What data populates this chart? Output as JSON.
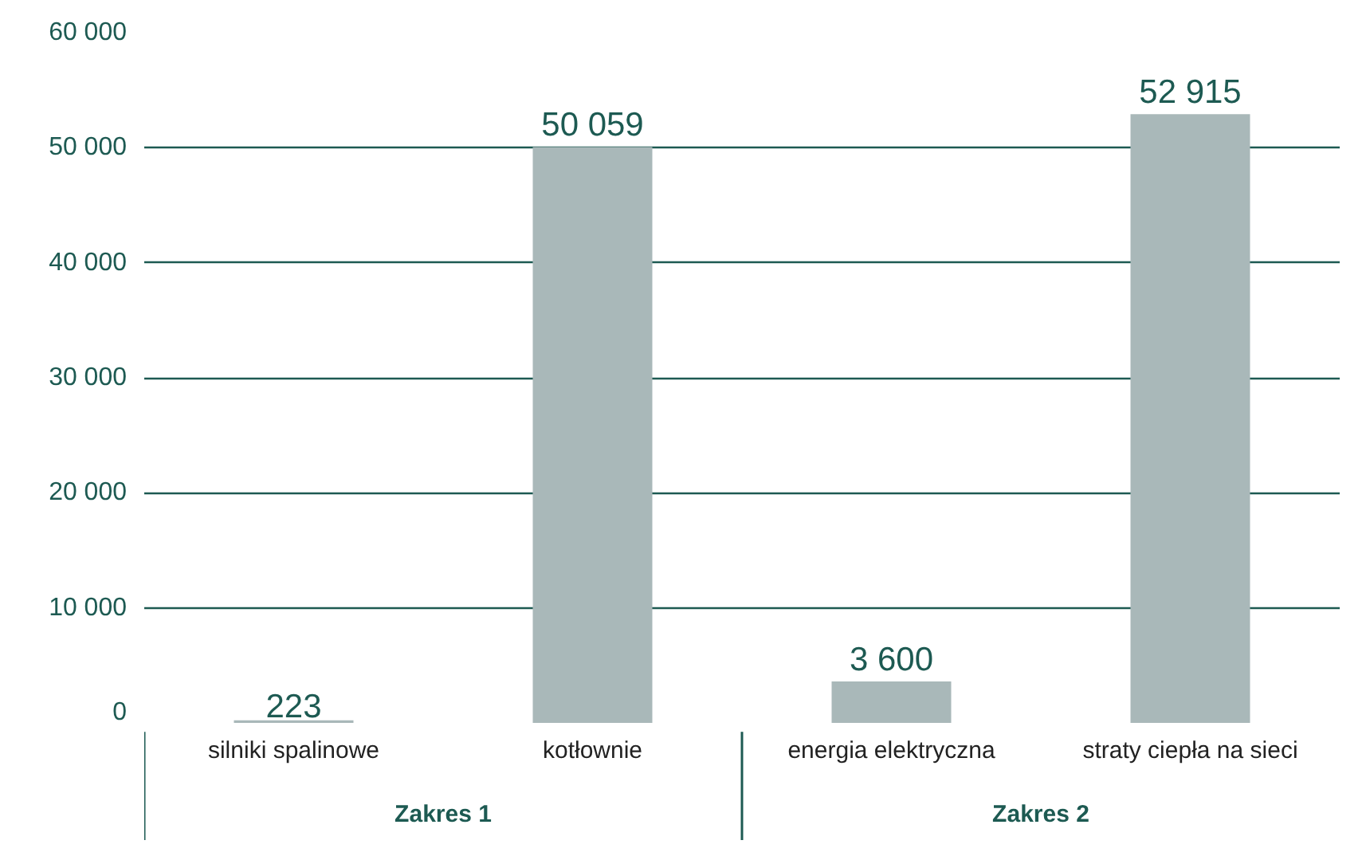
{
  "chart_data": {
    "type": "bar",
    "categories": [
      "silniki spalinowe",
      "kotłownie",
      "energia elektryczna",
      "straty ciepła na sieci"
    ],
    "values": [
      223,
      50059,
      3600,
      52915
    ],
    "value_labels": [
      "223",
      "50 059",
      "3 600",
      "52 915"
    ],
    "color": "#a9b8b9",
    "ylim": [
      0,
      60000
    ],
    "yticks": [
      {
        "value": 0,
        "label": "0"
      },
      {
        "value": 10000,
        "label": "10 000"
      },
      {
        "value": 20000,
        "label": "20 000"
      },
      {
        "value": 30000,
        "label": "30 000"
      },
      {
        "value": 40000,
        "label": "40 000"
      },
      {
        "value": 50000,
        "label": "50 000"
      },
      {
        "value": 60000,
        "label": "60 000"
      }
    ],
    "grid": "y",
    "annotations": [
      "Zakres 1",
      "Zakres 2"
    ]
  }
}
